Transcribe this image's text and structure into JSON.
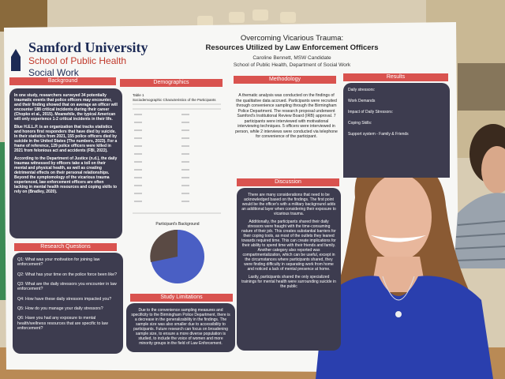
{
  "poster": {
    "logo": {
      "university": "Samford University",
      "school": "School of Public Health",
      "department": "Social Work"
    },
    "title": [
      "Overcoming Vicarious Trauma:",
      "Resources Utilized by Law Enforcement Officers"
    ],
    "author": "Caroline Bennett, MSW Candidate",
    "affiliation": "School of Public Health, Department of Social Work",
    "background": {
      "heading": "Background",
      "paragraphs": [
        "In one study, researchers surveyed 34 potentially traumatic events that police officers may encounter, and their finding showed that on average an officer will encounter 188 critical incidents during their career (Chopko et al., 2015). Meanwhile, the typical American will only experience 1-2 critical incidents in their life.",
        "Blue H.E.L.P. is an organization that tracks statistics and honors first responders that have died by suicide. In their statistics from 2021, 155 police officers died by suicide in the United States (The numbers, 2023). For a frame of reference, 129 police officers were killed in 2021 from felonious act and accidents (FBI, 2022).",
        "According to the Department of Justice (n.d.), the daily traumas witnessed by officers take a toll on their mental and physical health, as well as creating detrimental effects on their personal relationships. Beyond the symptomology of the vicarious trauma experienced, law enforcement officers are often lacking in mental health resources and coping skills to rely on (Bradley, 2020)."
      ]
    },
    "research_questions": {
      "heading": "Research Questions",
      "items": [
        "Q1: What was your motivation for joining law enforcement?",
        "Q2: What has your time on the police force been like?",
        "Q3: What are the daily stressors you encounter in law enforcement?",
        "Q4: How have these daily stressors impacted you?",
        "Q5: How do you manage your daily stressors?",
        "Q6: Have you had any exposure to mental health/wellness resources that are specific to law enforcement?"
      ]
    },
    "demographics": {
      "heading": "Demographics",
      "table_title": "Table 1",
      "table_caption": "Sociodemographic Characteristics of the Participants",
      "figure_title": "Participant's Background"
    },
    "methodology": {
      "heading": "Methodology",
      "text": "A thematic analysis was conducted on the findings of the qualitative data accrued. Participants were recruited through convenience sampling through the Birmingham Police Department. The research proposal underwent Samford's Institutional Review Board (IRB) approval. 7 participants were interviewed with motivational interviewing techniques. 5 officers were interviewed in person, while 2 interviews were conducted via telephone for convenience of the participant."
    },
    "discussion": {
      "heading": "Discussion",
      "paragraphs": [
        "There are many considerations that need to be acknowledged based on the findings. The first point would be the officer's with a military background adds an additional layer when considering their exposure to vicarious trauma.",
        "Additionally, the participants shared their daily stressors were fraught with the time-consuming nature of their job. This creates substantial barriers for their coping tools, as most of the outlets they leaned towards required time. This can create implications for their ability to spend time with their friends and family. Another category also reported was compartmentalization, which can be useful, except in the circumstances where participants shared, they were finding difficulty in separating work from home and noticed a lack of mental presence at home.",
        "Lastly, participants shared the only specialized trainings for mental health were surrounding suicide in the public"
      ]
    },
    "study_limitations": {
      "heading": "Study Limitations",
      "text": "Due to the convenience sampling measures and specificity to the Birmingham Police Department, there is a decrease in the generalizability in the findings. The sample size was also smaller due to accessibility to participants. Future research can focus on broadening sample size, to ensure a more diverse population is studied, to include the voice of women and more minority groups in the field of Law Enforcement."
    },
    "results": {
      "heading": "Results",
      "items": [
        "Daily stressors:",
        "Work Demands",
        "Impact of Daily Stressors:",
        "Coping Skills:",
        "Support system - Family & Friends"
      ]
    }
  }
}
